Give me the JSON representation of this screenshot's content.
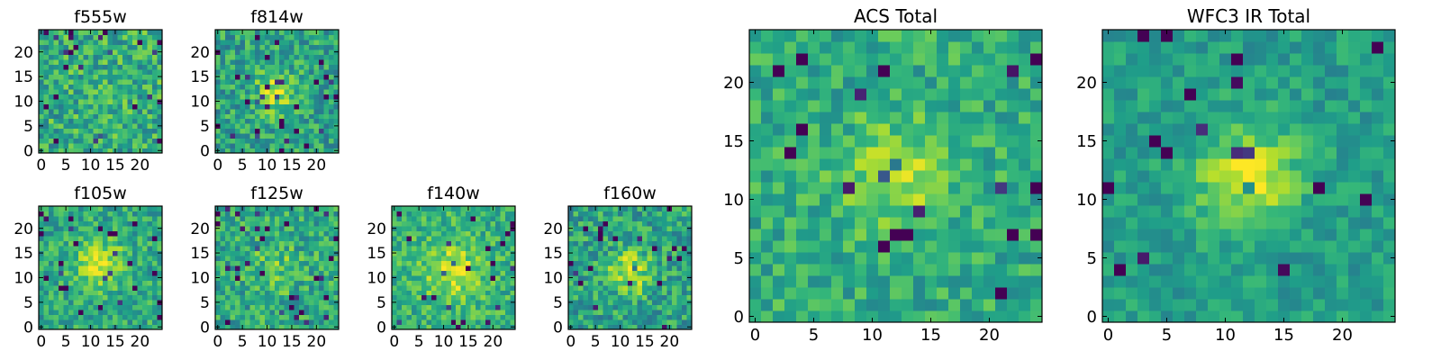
{
  "chart_data": [
    {
      "id": "f555w",
      "type": "heatmap",
      "title": "f555w",
      "grid_size": 25,
      "xlim": [
        0,
        24
      ],
      "ylim": [
        0,
        24
      ],
      "xticks": [
        0,
        5,
        10,
        15,
        20
      ],
      "yticks": [
        0,
        5,
        10,
        15,
        20
      ],
      "colormap": "viridis",
      "value_range": [
        0,
        1
      ],
      "structure": {
        "peak_center": [
          12,
          12
        ],
        "peak_sigma": 4,
        "peak_amplitude": 0.0,
        "noise": 0.22,
        "base": 0.62,
        "seed": 555
      }
    },
    {
      "id": "f814w",
      "type": "heatmap",
      "title": "f814w",
      "grid_size": 25,
      "xlim": [
        0,
        24
      ],
      "ylim": [
        0,
        24
      ],
      "xticks": [
        0,
        5,
        10,
        15,
        20
      ],
      "yticks": [
        0,
        5,
        10,
        15,
        20
      ],
      "colormap": "viridis",
      "value_range": [
        0,
        1
      ],
      "structure": {
        "peak_center": [
          12,
          12
        ],
        "peak_sigma": 3,
        "peak_amplitude": 0.3,
        "noise": 0.2,
        "base": 0.58,
        "seed": 814
      }
    },
    {
      "id": "f105w",
      "type": "heatmap",
      "title": "f105w",
      "grid_size": 25,
      "xlim": [
        0,
        24
      ],
      "ylim": [
        0,
        24
      ],
      "xticks": [
        0,
        5,
        10,
        15,
        20
      ],
      "yticks": [
        0,
        5,
        10,
        15,
        20
      ],
      "colormap": "viridis",
      "value_range": [
        0,
        1
      ],
      "structure": {
        "peak_center": [
          12,
          13
        ],
        "peak_sigma": 3.5,
        "peak_amplitude": 0.32,
        "noise": 0.18,
        "base": 0.6,
        "seed": 105
      }
    },
    {
      "id": "f125w",
      "type": "heatmap",
      "title": "f125w",
      "grid_size": 25,
      "xlim": [
        0,
        24
      ],
      "ylim": [
        0,
        24
      ],
      "xticks": [
        0,
        5,
        10,
        15,
        20
      ],
      "yticks": [
        0,
        5,
        10,
        15,
        20
      ],
      "colormap": "viridis",
      "value_range": [
        0,
        1
      ],
      "structure": {
        "peak_center": [
          12,
          12
        ],
        "peak_sigma": 3.5,
        "peak_amplitude": 0.15,
        "noise": 0.2,
        "base": 0.6,
        "seed": 125
      }
    },
    {
      "id": "f140w",
      "type": "heatmap",
      "title": "f140w",
      "grid_size": 25,
      "xlim": [
        0,
        24
      ],
      "ylim": [
        0,
        24
      ],
      "xticks": [
        0,
        5,
        10,
        15,
        20
      ],
      "yticks": [
        0,
        5,
        10,
        15,
        20
      ],
      "colormap": "viridis",
      "value_range": [
        0,
        1
      ],
      "structure": {
        "peak_center": [
          12,
          11
        ],
        "peak_sigma": 4,
        "peak_amplitude": 0.3,
        "noise": 0.17,
        "base": 0.64,
        "seed": 140
      }
    },
    {
      "id": "f160w",
      "type": "heatmap",
      "title": "f160w",
      "grid_size": 25,
      "xlim": [
        0,
        24
      ],
      "ylim": [
        0,
        24
      ],
      "xticks": [
        0,
        5,
        10,
        15,
        20
      ],
      "yticks": [
        0,
        5,
        10,
        15,
        20
      ],
      "colormap": "viridis",
      "value_range": [
        0,
        1
      ],
      "structure": {
        "peak_center": [
          12,
          11
        ],
        "peak_sigma": 3,
        "peak_amplitude": 0.35,
        "noise": 0.2,
        "base": 0.58,
        "seed": 160
      }
    },
    {
      "id": "acs_total",
      "type": "heatmap",
      "title": "ACS Total",
      "grid_size": 25,
      "xlim": [
        0,
        24
      ],
      "ylim": [
        0,
        24
      ],
      "xticks": [
        0,
        5,
        10,
        15,
        20
      ],
      "yticks": [
        0,
        5,
        10,
        15,
        20
      ],
      "colormap": "viridis",
      "value_range": [
        0,
        1
      ],
      "structure": {
        "peak_center": [
          12,
          12
        ],
        "peak_sigma": 3,
        "peak_amplitude": 0.28,
        "noise": 0.16,
        "base": 0.62,
        "seed": 777
      }
    },
    {
      "id": "wfc3_ir_total",
      "type": "heatmap",
      "title": "WFC3 IR Total",
      "grid_size": 25,
      "xlim": [
        0,
        24
      ],
      "ylim": [
        0,
        24
      ],
      "xticks": [
        0,
        5,
        10,
        15,
        20
      ],
      "yticks": [
        0,
        5,
        10,
        15,
        20
      ],
      "colormap": "viridis",
      "value_range": [
        0,
        1
      ],
      "structure": {
        "peak_center": [
          12,
          12
        ],
        "peak_sigma": 3,
        "peak_amplitude": 0.38,
        "noise": 0.12,
        "base": 0.56,
        "seed": 999
      }
    }
  ]
}
